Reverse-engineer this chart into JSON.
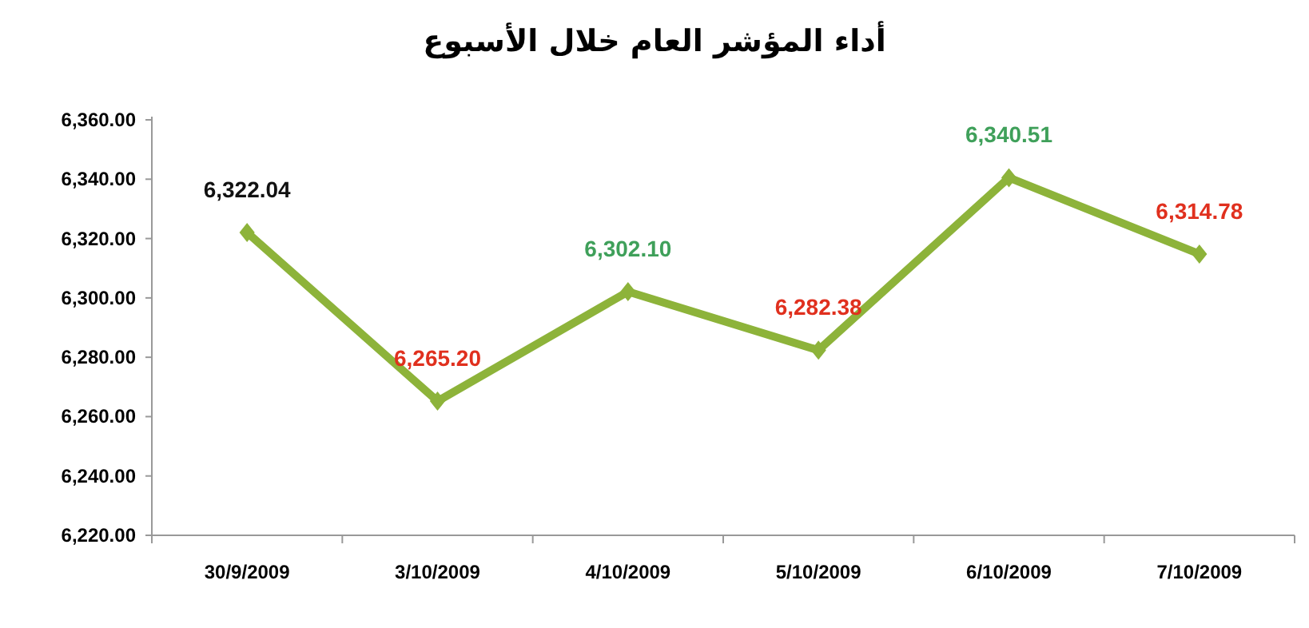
{
  "chart_data": {
    "type": "line",
    "title": "أداء المؤشر العام خلال الأسبوع",
    "categories": [
      "30/9/2009",
      "3/10/2009",
      "4/10/2009",
      "5/10/2009",
      "6/10/2009",
      "7/10/2009"
    ],
    "series": [
      {
        "color": "#8db33a",
        "values": [
          6322.04,
          6265.2,
          6302.1,
          6282.38,
          6340.51,
          6314.78
        ],
        "value_labels": [
          "6,322.04",
          "6,265.20",
          "6,302.10",
          "6,282.38",
          "6,340.51",
          "6,314.78"
        ]
      }
    ],
    "ylim": [
      6220,
      6360
    ],
    "yticks": [
      {
        "value": 6220,
        "label": "6,220.00"
      },
      {
        "value": 6240,
        "label": "6,240.00"
      },
      {
        "value": 6260,
        "label": "6,260.00"
      },
      {
        "value": 6280,
        "label": "6,280.00"
      },
      {
        "value": 6300,
        "label": "6,300.00"
      },
      {
        "value": 6320,
        "label": "6,320.00"
      },
      {
        "value": 6340,
        "label": "6,340.00"
      },
      {
        "value": 6360,
        "label": "6,360.00"
      }
    ],
    "marker": "diamond",
    "line_style": "solid"
  }
}
